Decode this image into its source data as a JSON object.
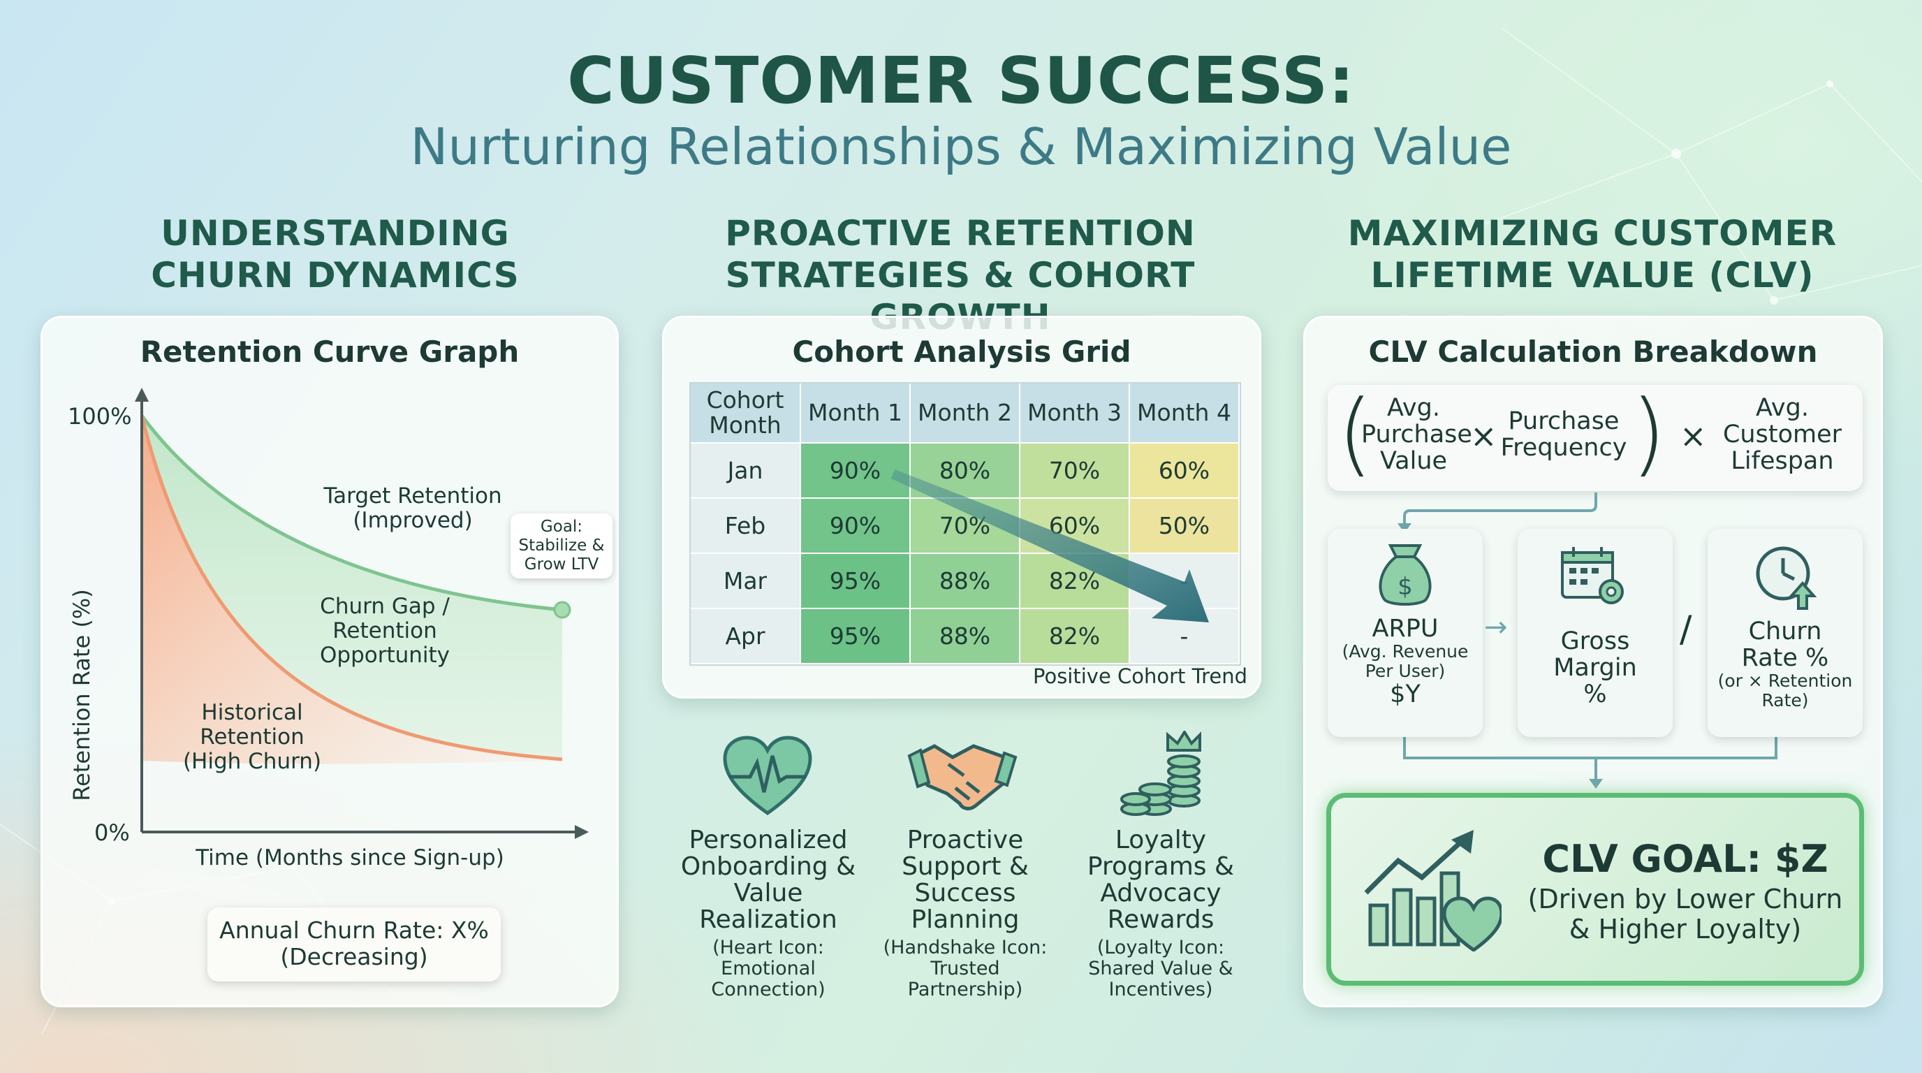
{
  "header": {
    "title": "CUSTOMER SUCCESS:",
    "subtitle": "Nurturing Relationships & Maximizing Value"
  },
  "columns": {
    "churn": {
      "heading_line1": "UNDERSTANDING",
      "heading_line2": "CHURN DYNAMICS"
    },
    "retention": {
      "heading_line1": "PROACTIVE RETENTION",
      "heading_line2": "STRATEGIES & COHORT GROWTH"
    },
    "clv": {
      "heading_line1": "MAXIMIZING CUSTOMER",
      "heading_line2": "LIFETIME VALUE (CLV)"
    }
  },
  "retention_chart": {
    "card_title": "Retention Curve Graph",
    "y_label": "Retention Rate (%)",
    "x_label": "Time (Months since Sign-up)",
    "y_tick_top": "100%",
    "y_tick_bottom": "0%",
    "target_line1": "Target Retention",
    "target_line2": "(Improved)",
    "gap_line1": "Churn Gap /",
    "gap_line2": "Retention",
    "gap_line3": "Opportunity",
    "hist_line1": "Historical",
    "hist_line2": "Retention",
    "hist_line3": "(High Churn)",
    "goal_line1": "Goal:",
    "goal_line2": "Stabilize &",
    "goal_line3": "Grow LTV",
    "churn_rate_line1": "Annual Churn Rate: X%",
    "churn_rate_line2": "(Decreasing)",
    "colors": {
      "target": "#7fc48f",
      "historical": "#ef9a72",
      "axis": "#4a5a5a"
    }
  },
  "cohort": {
    "card_title": "Cohort Analysis Grid",
    "header_cohort_line1": "Cohort",
    "header_cohort_line2": "Month",
    "months": [
      "Month 1",
      "Month 2",
      "Month 3",
      "Month 4"
    ],
    "rows": [
      {
        "label": "Jan",
        "cells": [
          "90%",
          "80%",
          "70%",
          "60%"
        ],
        "colors": [
          "#72c48a",
          "#98d296",
          "#c0df9c",
          "#ece59c"
        ]
      },
      {
        "label": "Feb",
        "cells": [
          "90%",
          "70%",
          "60%",
          "50%"
        ],
        "colors": [
          "#72c48a",
          "#a6d89a",
          "#cce2a0",
          "#ece39e"
        ]
      },
      {
        "label": "Mar",
        "cells": [
          "95%",
          "88%",
          "82%",
          "-"
        ],
        "colors": [
          "#6cc187",
          "#90d095",
          "#b8dd9b",
          "#e9f1f0"
        ]
      },
      {
        "label": "Apr",
        "cells": [
          "95%",
          "88%",
          "82%",
          "-"
        ],
        "colors": [
          "#6cc187",
          "#90d095",
          "#b8dd9b",
          "#e9f1f0"
        ]
      }
    ],
    "trend_label": "Positive Cohort Trend"
  },
  "strategies": [
    {
      "icon": "heart-pulse-icon",
      "title_lines": [
        "Personalized",
        "Onboarding &",
        "Value",
        "Realization"
      ],
      "sub_lines": [
        "(Heart Icon:",
        "Emotional",
        "Connection)"
      ]
    },
    {
      "icon": "handshake-icon",
      "title_lines": [
        "Proactive",
        "Support &",
        "Success",
        "Planning"
      ],
      "sub_lines": [
        "(Handshake Icon:",
        "Trusted",
        "Partnership)"
      ]
    },
    {
      "icon": "coins-crown-icon",
      "title_lines": [
        "Loyalty",
        "Programs &",
        "Advocacy",
        "Rewards"
      ],
      "sub_lines": [
        "(Loyalty Icon:",
        "Shared Value &",
        "Incentives)"
      ]
    }
  ],
  "clv": {
    "card_title": "CLV Calculation Breakdown",
    "term1_lines": [
      "Avg.",
      "Purchase",
      "Value"
    ],
    "term2_lines": [
      "Purchase",
      "Frequency"
    ],
    "term3_lines": [
      "Avg.",
      "Customer",
      "Lifespan"
    ],
    "times": "×",
    "divide": "/",
    "arrow": "→",
    "arpu": {
      "title": "ARPU",
      "sub_lines": [
        "(Avg. Revenue",
        "Per User)"
      ],
      "value": "$Y"
    },
    "margin": {
      "title_lines": [
        "Gross",
        "Margin",
        "%"
      ]
    },
    "churn": {
      "title_lines": [
        "Churn",
        "Rate %"
      ],
      "sub_lines": [
        "(or × Retention",
        "Rate)"
      ]
    },
    "goal_title": "CLV GOAL: $Z",
    "goal_sub_line1": "(Driven by Lower Churn",
    "goal_sub_line2": "& Higher Loyalty)"
  }
}
